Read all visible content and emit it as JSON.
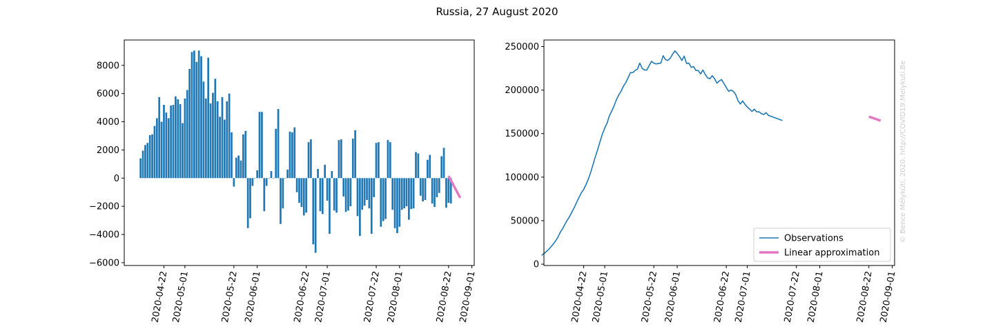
{
  "figure": {
    "title": "Russia, 27 August 2020",
    "watermark": "© Bence Mélykúti, 2020. http://COVID19.Melykuti.Be"
  },
  "colors": {
    "bar": "#1f77b4",
    "observations": "#1f77b4",
    "linear_approximation": "#e377c2",
    "axes": "#000000",
    "watermark": "#cccccc"
  },
  "chart_data": [
    {
      "type": "bar",
      "title": "",
      "xlabel": "",
      "ylabel": "",
      "x_tick_labels": [
        "2020-04-22",
        "2020-05-01",
        "2020-05-22",
        "2020-06-01",
        "2020-06-22",
        "2020-07-01",
        "2020-07-22",
        "2020-08-01",
        "2020-08-22",
        "2020-09-01"
      ],
      "y_ticks": [
        -6000,
        -4000,
        -2000,
        0,
        2000,
        4000,
        6000,
        8000
      ],
      "y_tick_labels": [
        "−6000",
        "−4000",
        "−2000",
        "0",
        "2000",
        "4000",
        "6000",
        "8000"
      ],
      "xlim": [
        "2020-04-05",
        "2020-09-02"
      ],
      "ylim": [
        -6200,
        9800
      ],
      "dates_start": "2020-04-12",
      "values": [
        1400,
        1950,
        2350,
        2500,
        3050,
        3100,
        3700,
        4250,
        5750,
        4000,
        5200,
        4650,
        4250,
        5150,
        5200,
        5800,
        5600,
        5250,
        3900,
        5650,
        6250,
        7750,
        8950,
        9050,
        8250,
        9050,
        8650,
        6850,
        5650,
        8550,
        5300,
        6050,
        7050,
        5450,
        4350,
        5750,
        4150,
        5450,
        6000,
        3250,
        -600,
        1450,
        1600,
        1250,
        3100,
        3350,
        -3550,
        -2850,
        -550,
        0,
        550,
        4700,
        4700,
        -2350,
        -550,
        0,
        500,
        0,
        3500,
        4900,
        -3250,
        -2150,
        0,
        600,
        3300,
        3250,
        3600,
        -1000,
        -1750,
        -2050,
        -2650,
        -2450,
        2550,
        2750,
        -4700,
        -5300,
        650,
        -2350,
        -2550,
        950,
        -1600,
        -3950,
        500,
        -2300,
        -2450,
        2700,
        2750,
        -1300,
        -2400,
        -2300,
        -2000,
        2800,
        3400,
        -2700,
        -4100,
        -2250,
        -1950,
        -1550,
        -2150,
        -3950,
        -1350,
        2500,
        2550,
        -3450,
        -3050,
        -2900,
        2700,
        2550,
        -2250,
        -3550,
        -3900,
        -3450,
        -2250,
        -2150,
        -2000,
        -2950,
        -2200,
        -2150,
        1850,
        1750,
        -1250,
        -1650,
        -1550,
        1300,
        1650,
        -1800,
        -2050,
        -1350,
        -1050,
        1550,
        2150,
        -2100,
        -1750,
        -1800
      ],
      "overlay_line": {
        "name": "Linear approximation",
        "x": [
          "2020-08-22",
          "2020-08-27"
        ],
        "y": [
          150,
          -1400
        ]
      }
    },
    {
      "type": "line",
      "title": "",
      "xlabel": "",
      "ylabel": "",
      "x_tick_labels": [
        "2020-04-22",
        "2020-05-01",
        "2020-05-22",
        "2020-06-01",
        "2020-06-22",
        "2020-07-01",
        "2020-07-22",
        "2020-08-01",
        "2020-08-22",
        "2020-09-01"
      ],
      "y_ticks": [
        0,
        50000,
        100000,
        150000,
        200000,
        250000
      ],
      "y_tick_labels": [
        "0",
        "50000",
        "100000",
        "150000",
        "200000",
        "250000"
      ],
      "xlim": [
        "2020-04-05",
        "2020-09-02"
      ],
      "ylim": [
        -1500,
        257500
      ],
      "legend_position": "lower-right",
      "series": [
        {
          "name": "Observations",
          "x_start": "2020-04-04",
          "values": [
            10200,
            12150,
            14450,
            16940,
            19990,
            23090,
            26800,
            31040,
            36800,
            40800,
            46000,
            50650,
            54910,
            60070,
            65290,
            71090,
            76690,
            81940,
            85840,
            91490,
            97740,
            105490,
            114440,
            123490,
            131740,
            140790,
            149440,
            156290,
            161940,
            170490,
            175790,
            181840,
            188890,
            194340,
            198690,
            204440,
            208590,
            214040,
            220040,
            220050,
            222500,
            224000,
            231000,
            225000,
            223000,
            223000,
            228000,
            233000,
            231000,
            230000,
            230500,
            231000,
            239500,
            235000,
            234000,
            236500,
            241000,
            245000,
            242000,
            238500,
            234000,
            239000,
            230500,
            231000,
            226000,
            227000,
            222500,
            222500,
            218500,
            223000,
            218000,
            214000,
            213000,
            216500,
            213000,
            208000,
            210500,
            212000,
            207500,
            203000,
            198500,
            200000,
            198500,
            195000,
            188000,
            184000,
            187500,
            183500,
            180500,
            178000,
            175500,
            178000,
            175000,
            175000,
            173000,
            172000,
            174000,
            171000,
            170000,
            169000,
            168000,
            167000,
            166000,
            165000
          ]
        },
        {
          "name": "Linear approximation",
          "x": [
            "2020-08-22",
            "2020-08-27"
          ],
          "y": [
            169500,
            164800
          ]
        }
      ]
    }
  ]
}
